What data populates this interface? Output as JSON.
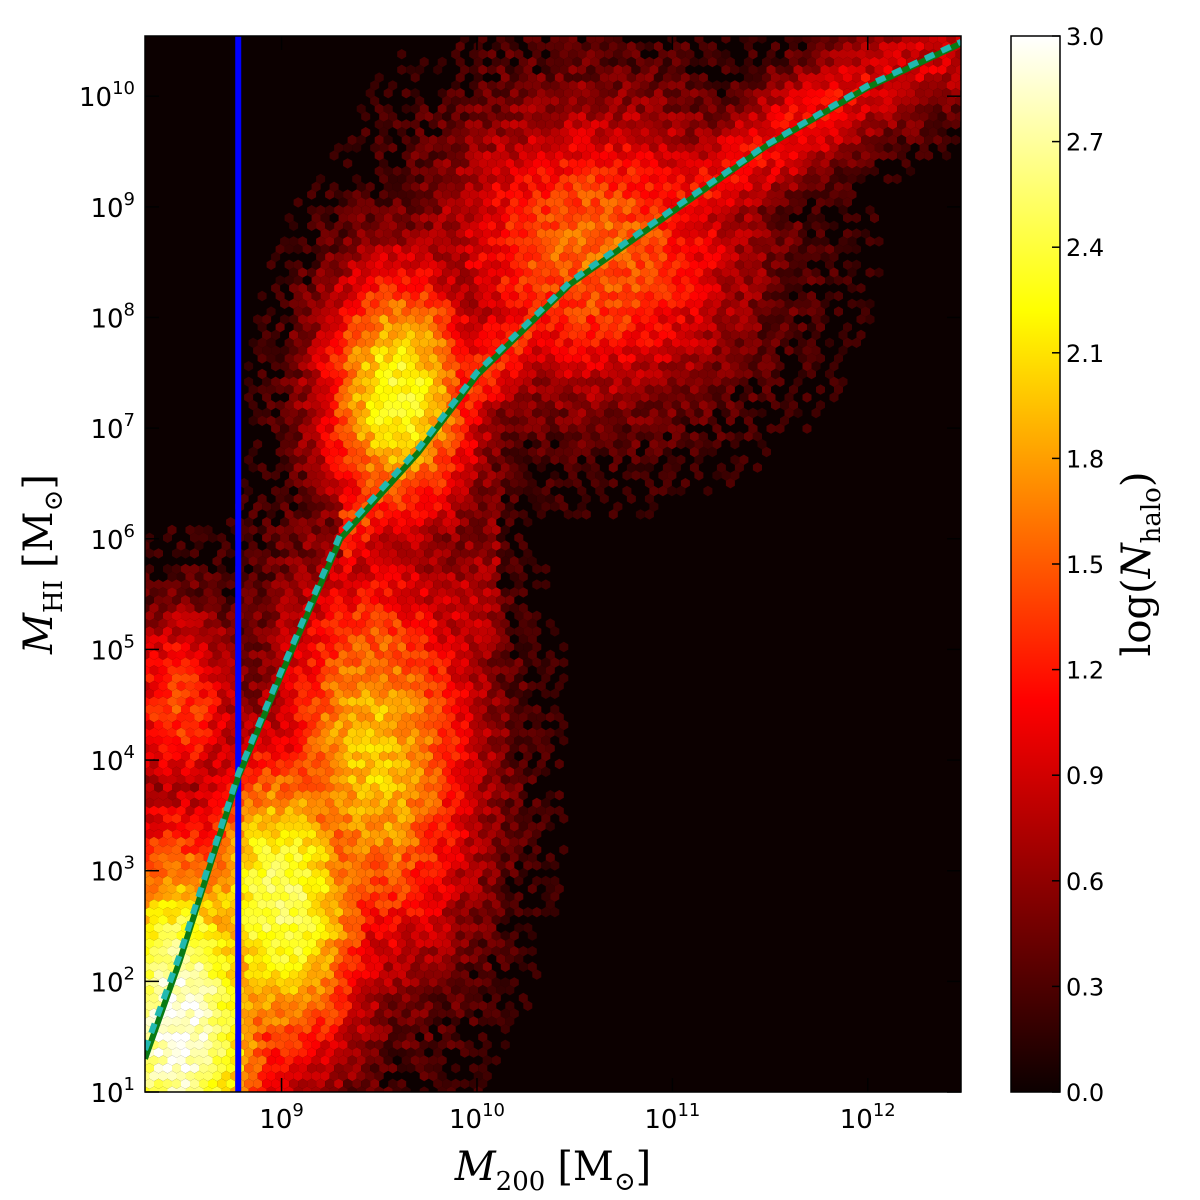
{
  "chart_data": {
    "type": "heatmap",
    "subtype": "hexbin",
    "xscale": "log",
    "yscale": "log",
    "xlim": [
      200000000,
      3000000000000
    ],
    "ylim": [
      10,
      35000000000
    ],
    "xlabel": {
      "main": "M",
      "sub": "200",
      "unit": "[M",
      "unit_sub": "⊙",
      "close": "]"
    },
    "ylabel": {
      "main": "M",
      "sub": "HI",
      "unit": "[M",
      "unit_sub": "⊙",
      "close": "]"
    },
    "x_ticks": [
      {
        "base": "10",
        "exp": "9",
        "value": 1000000000
      },
      {
        "base": "10",
        "exp": "10",
        "value": 10000000000
      },
      {
        "base": "10",
        "exp": "11",
        "value": 100000000000
      },
      {
        "base": "10",
        "exp": "12",
        "value": 1000000000000
      }
    ],
    "y_ticks": [
      {
        "base": "10",
        "exp": "1",
        "value": 10
      },
      {
        "base": "10",
        "exp": "2",
        "value": 100
      },
      {
        "base": "10",
        "exp": "3",
        "value": 1000
      },
      {
        "base": "10",
        "exp": "4",
        "value": 10000
      },
      {
        "base": "10",
        "exp": "5",
        "value": 100000
      },
      {
        "base": "10",
        "exp": "6",
        "value": 1000000
      },
      {
        "base": "10",
        "exp": "7",
        "value": 10000000
      },
      {
        "base": "10",
        "exp": "8",
        "value": 100000000
      },
      {
        "base": "10",
        "exp": "9",
        "value": 1000000000
      },
      {
        "base": "10",
        "exp": "10",
        "value": 10000000000
      }
    ],
    "colorbar": {
      "label_main": "log(",
      "label_var": "N",
      "label_sub": "halo",
      "label_close": ")",
      "range": [
        0,
        3
      ],
      "ticks": [
        "0.0",
        "0.3",
        "0.6",
        "0.9",
        "1.2",
        "1.5",
        "1.8",
        "2.1",
        "2.4",
        "2.7",
        "3.0"
      ],
      "colormap": "hot",
      "background": "#0c0000"
    },
    "density_components": [
      {
        "peak_x": 300000000,
        "peak_y": 40,
        "level": 2.95
      },
      {
        "peak_x": 1000000000,
        "peak_y": 500,
        "level": 2.5
      },
      {
        "peak_x": 3000000000,
        "peak_y": 10000,
        "level": 1.95
      },
      {
        "peak_x": 4000000000,
        "peak_y": 20000000,
        "level": 2.3
      },
      {
        "peak_x": 40000000000,
        "peak_y": 400000000,
        "level": 1.55
      },
      {
        "peak_x": 300000000,
        "peak_y": 30000,
        "level": 1.35
      }
    ],
    "vertical_line": {
      "x": 600000000,
      "color": "#0000ff"
    },
    "series": [
      {
        "style": "solid",
        "color": "#0a7a14",
        "x": [
          200000000,
          300000000,
          600000000,
          1000000000,
          2000000000,
          5000000000,
          10000000000,
          30000000000,
          100000000000,
          300000000000,
          1000000000000,
          3000000000000
        ],
        "y": [
          20,
          150,
          7000,
          60000,
          1000000,
          6000000,
          30000000,
          200000000,
          900000000,
          3500000000,
          12000000000,
          30000000000
        ]
      },
      {
        "style": "dashed",
        "color": "#20b8b0",
        "x": [
          200000000,
          300000000,
          600000000,
          1000000000,
          2000000000,
          5000000000,
          10000000000,
          30000000000,
          100000000000,
          300000000000,
          1000000000000,
          3000000000000
        ],
        "y": [
          24,
          170,
          7500,
          65000,
          1100000,
          6500000,
          32000000,
          210000000,
          950000000,
          3600000000,
          12500000000,
          31000000000
        ]
      }
    ],
    "grid": false,
    "legend": "none"
  }
}
